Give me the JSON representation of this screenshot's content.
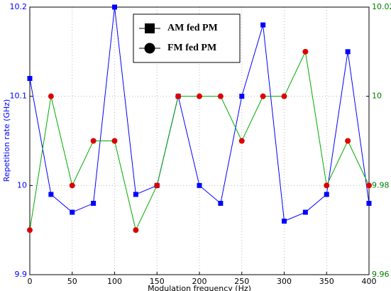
{
  "chart_data": {
    "type": "line",
    "x_label": "Modulation frequency (Hz)",
    "y_label": "Repetition rate (GHz)",
    "x": [
      0,
      25,
      50,
      75,
      100,
      125,
      150,
      175,
      200,
      225,
      250,
      275,
      300,
      325,
      350,
      375,
      400
    ],
    "series": [
      {
        "name": "AM fed PM",
        "color": "#0000ff",
        "marker": "square",
        "marker_color": "#0000ff",
        "axis": "y",
        "values": [
          10.12,
          9.99,
          9.97,
          9.98,
          10.2,
          9.99,
          10.0,
          10.1,
          10.0,
          9.98,
          10.1,
          10.18,
          9.96,
          9.97,
          9.99,
          10.15,
          9.98
        ]
      },
      {
        "name": "FM fed PM",
        "color": "#00aa00",
        "marker": "circle",
        "marker_color": "#dd0000",
        "axis": "y2",
        "values": [
          9.97,
          10.0,
          9.98,
          9.99,
          9.99,
          9.97,
          9.98,
          10.0,
          10.0,
          10.0,
          9.99,
          10.0,
          10.0,
          10.01,
          9.98,
          9.99,
          9.98
        ]
      }
    ],
    "xlim": [
      0,
      400
    ],
    "xticks": [
      0,
      50,
      100,
      150,
      200,
      250,
      300,
      350,
      400
    ],
    "ylim": [
      9.9,
      10.2
    ],
    "yticks": [
      9.9,
      10,
      10.1,
      10.2
    ],
    "y_color": "#0000ff",
    "y2lim": [
      9.96,
      10.02
    ],
    "y2ticks": [
      9.96,
      9.98,
      10,
      10.02
    ],
    "y2_color": "#008000",
    "grid": true,
    "legend": "top"
  }
}
